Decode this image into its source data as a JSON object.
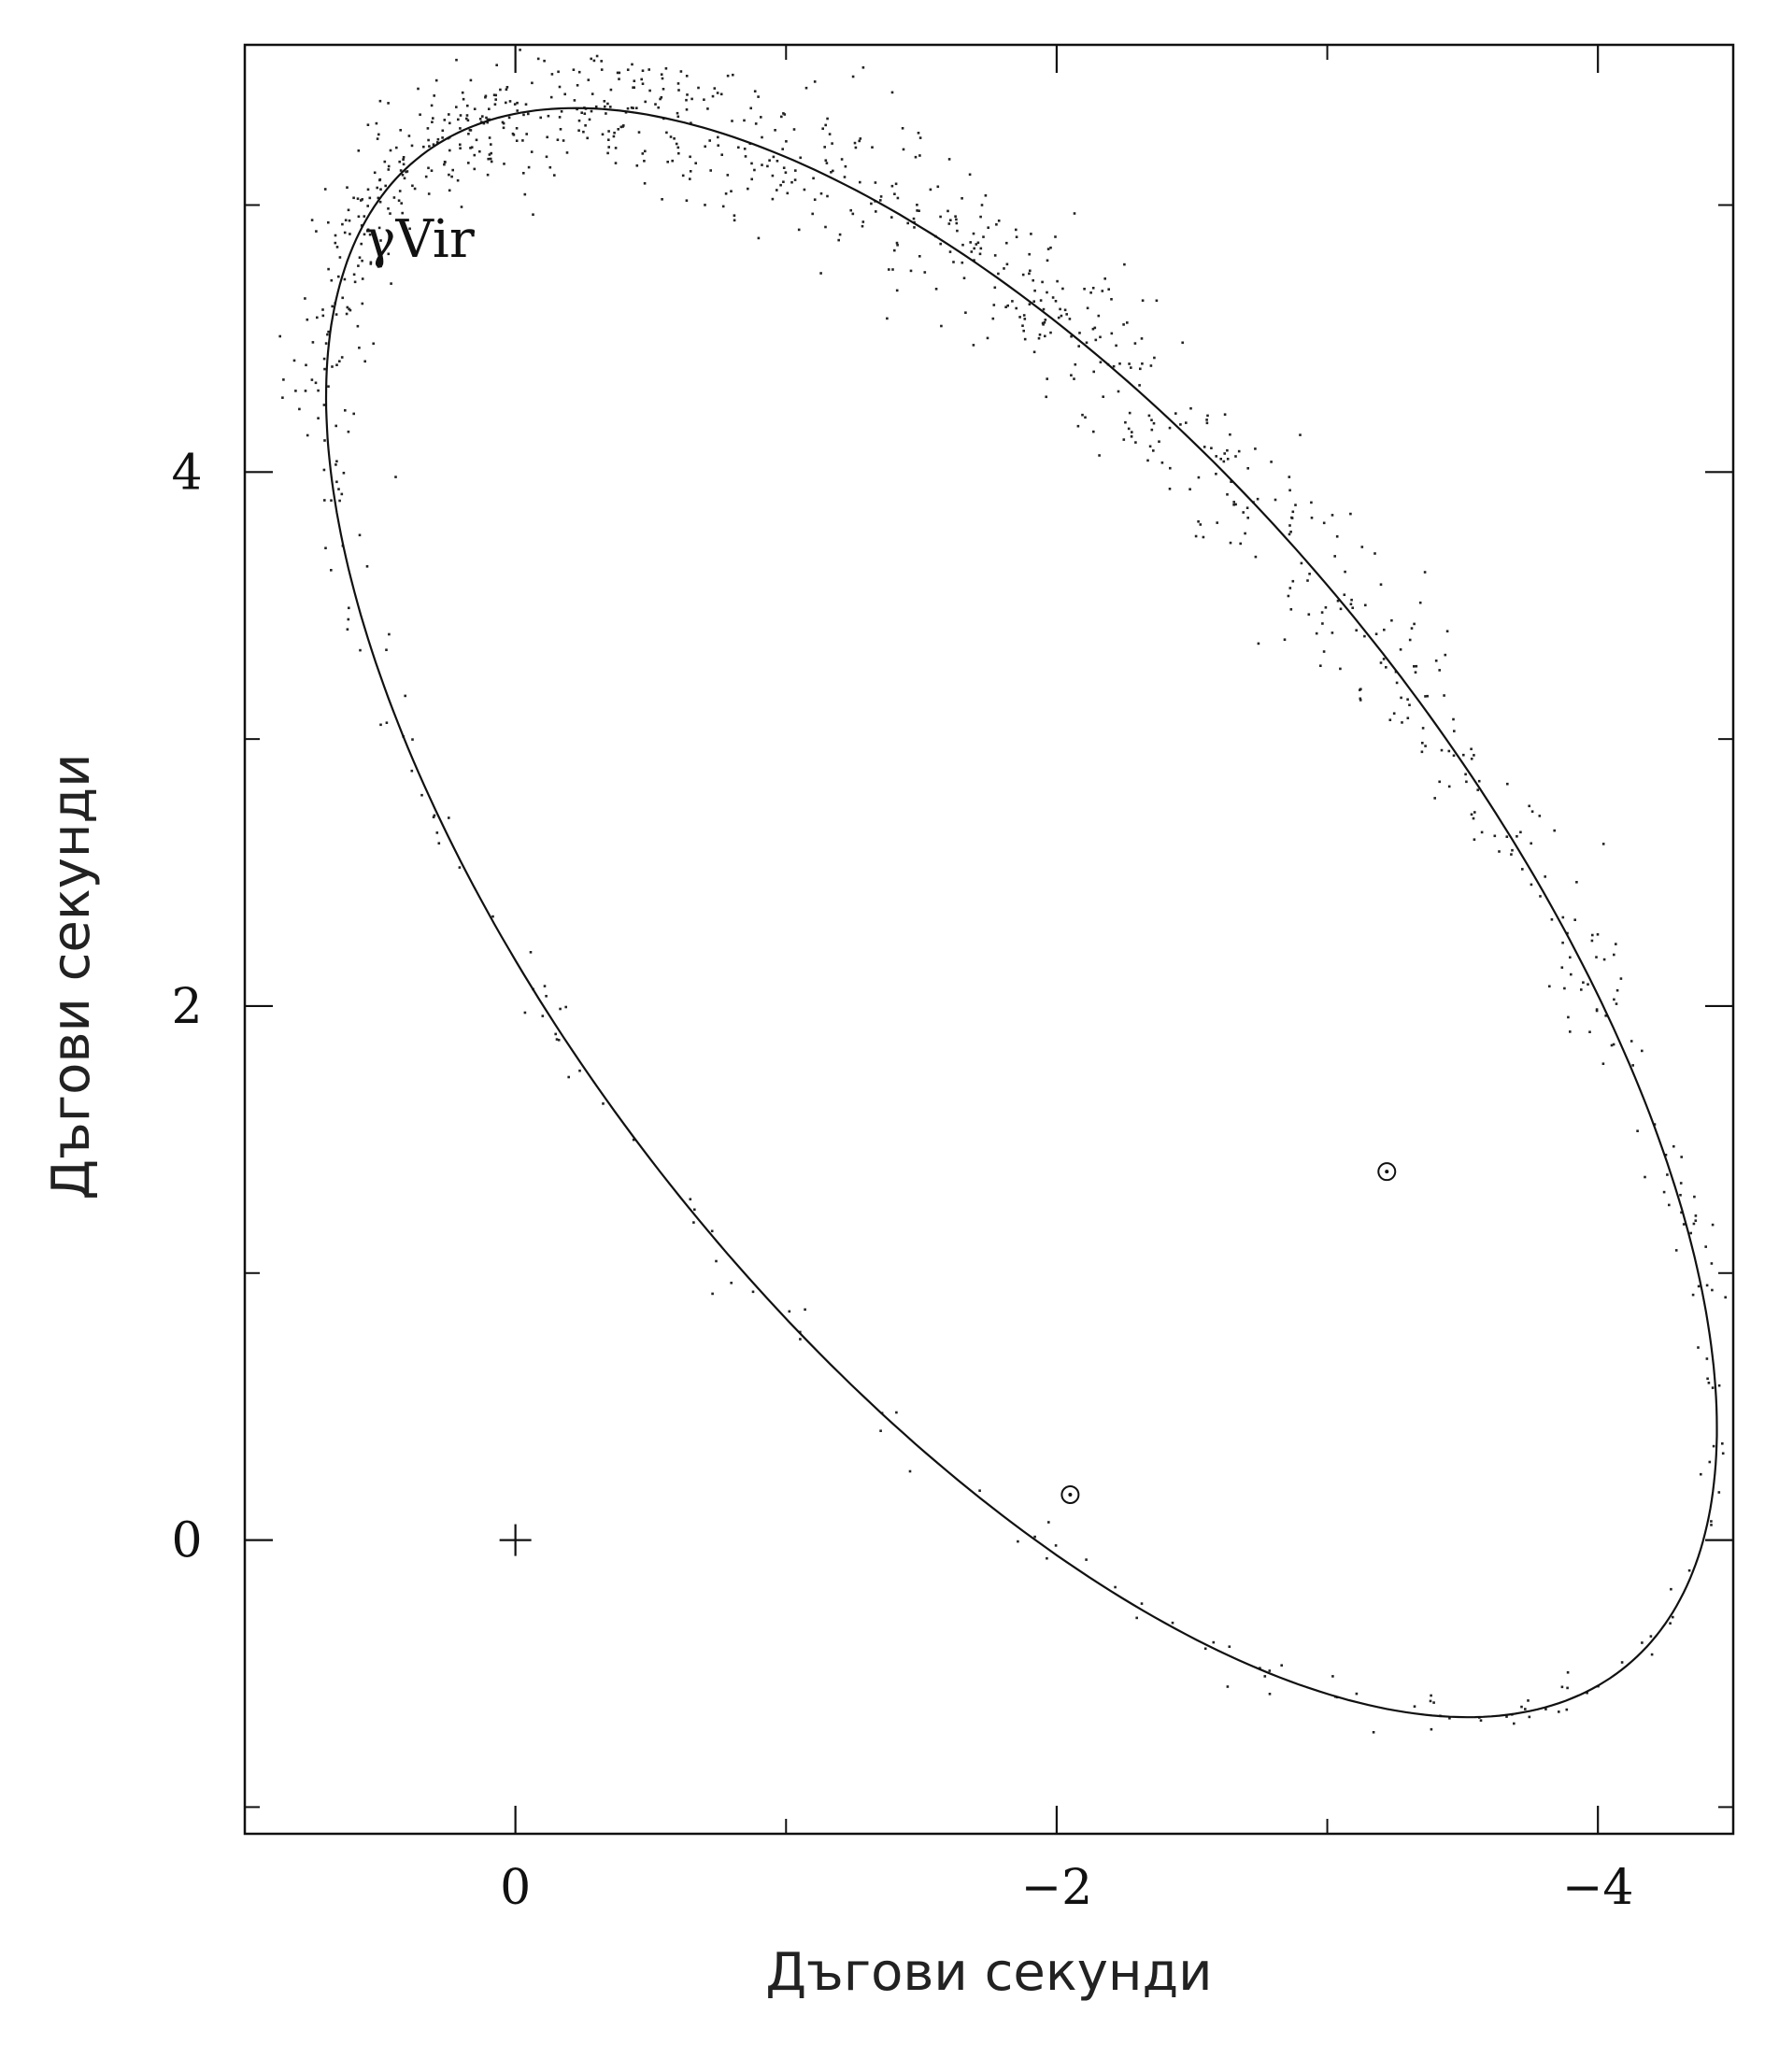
{
  "chart_data": {
    "type": "scatter",
    "title": "",
    "annotation": "γVir",
    "xlabel": "Дъгови секунди",
    "ylabel": "Дъгови секунди",
    "xlim": [
      1.0,
      -4.5
    ],
    "ylim": [
      -1.1,
      5.6
    ],
    "x_reversed": true,
    "x_major_ticks": [
      0,
      -2,
      -4
    ],
    "x_tick_labels": [
      "0",
      "−2",
      "−4"
    ],
    "x_minor_ticks": [
      1,
      -1,
      -3
    ],
    "y_major_ticks": [
      0,
      2,
      4
    ],
    "y_tick_labels": [
      "0",
      "2",
      "4"
    ],
    "y_minor_ticks": [
      -1,
      1,
      3,
      5
    ],
    "grid": false,
    "primary_star": {
      "x": 0,
      "y": 0,
      "marker": "plus"
    },
    "orbit": {
      "center": [
        -1.87,
        2.35
      ],
      "semi_major": 3.6,
      "semi_minor": 1.65,
      "angle_deg": 52
    },
    "highlighted_points": [
      {
        "x": -2.05,
        "y": 0.17
      },
      {
        "x": -3.22,
        "y": 1.38
      }
    ],
    "observation_dots": "Scattered astrometric observations concentrated along the upper-right arc of the orbit"
  }
}
